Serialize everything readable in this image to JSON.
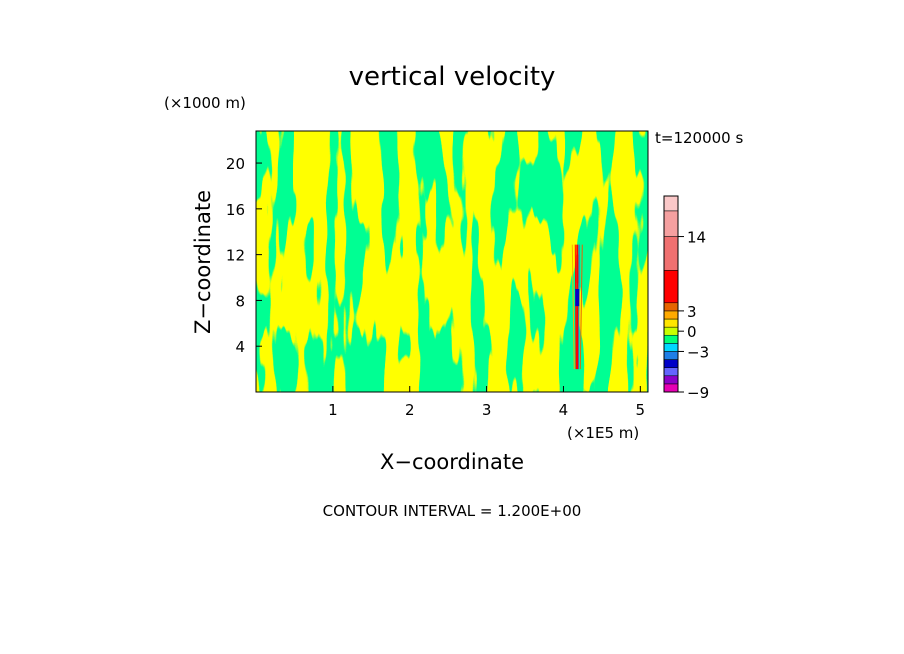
{
  "chart_data": {
    "type": "heatmap",
    "title": "vertical velocity",
    "xlabel": "X−coordinate",
    "ylabel": "Z−coordinate",
    "x_unit": "(×1E5 m)",
    "y_unit": "(×1000 m)",
    "time_label": "t=120000 s",
    "footer": "CONTOUR INTERVAL = 1.200E+00",
    "xlim": [
      0,
      5.1
    ],
    "ylim": [
      0,
      22.8
    ],
    "x_ticks": [
      1,
      2,
      3,
      4,
      5
    ],
    "x_tick_labels": [
      "1",
      "2",
      "3",
      "4",
      "5"
    ],
    "y_ticks": [
      4,
      8,
      12,
      16,
      20
    ],
    "y_tick_labels": [
      "4",
      "8",
      "12",
      "16",
      "20"
    ],
    "colorbar": {
      "levels": [
        -9,
        -7.8,
        -6.6,
        -5.4,
        -4.2,
        -3,
        -1.8,
        -0.6,
        0.6,
        1.8,
        3,
        4.2,
        9,
        14,
        17.8,
        20
      ],
      "colors": [
        "#e600b4",
        "#8c00c8",
        "#6464ff",
        "#0000c8",
        "#1e7ee6",
        "#00d7ff",
        "#00ff78",
        "#c8ff00",
        "#ffe600",
        "#ffaa00",
        "#e66400",
        "#ff0000",
        "#f07070",
        "#f5a0a0",
        "#fac8c8"
      ],
      "tick_values": [
        -9,
        -3,
        0,
        3,
        14
      ],
      "tick_labels": [
        "−9",
        "−3",
        "0",
        "3",
        "14"
      ]
    },
    "field": {
      "description_colors": {
        "positive_small": "#ffff00",
        "negative_small": "#00ff4b"
      },
      "dominant_range": [
        -0.6,
        0.6
      ],
      "updraft_feature": {
        "x": 4.18,
        "z_range": [
          2,
          12
        ],
        "w_max": 14,
        "w_min": -9
      }
    }
  }
}
